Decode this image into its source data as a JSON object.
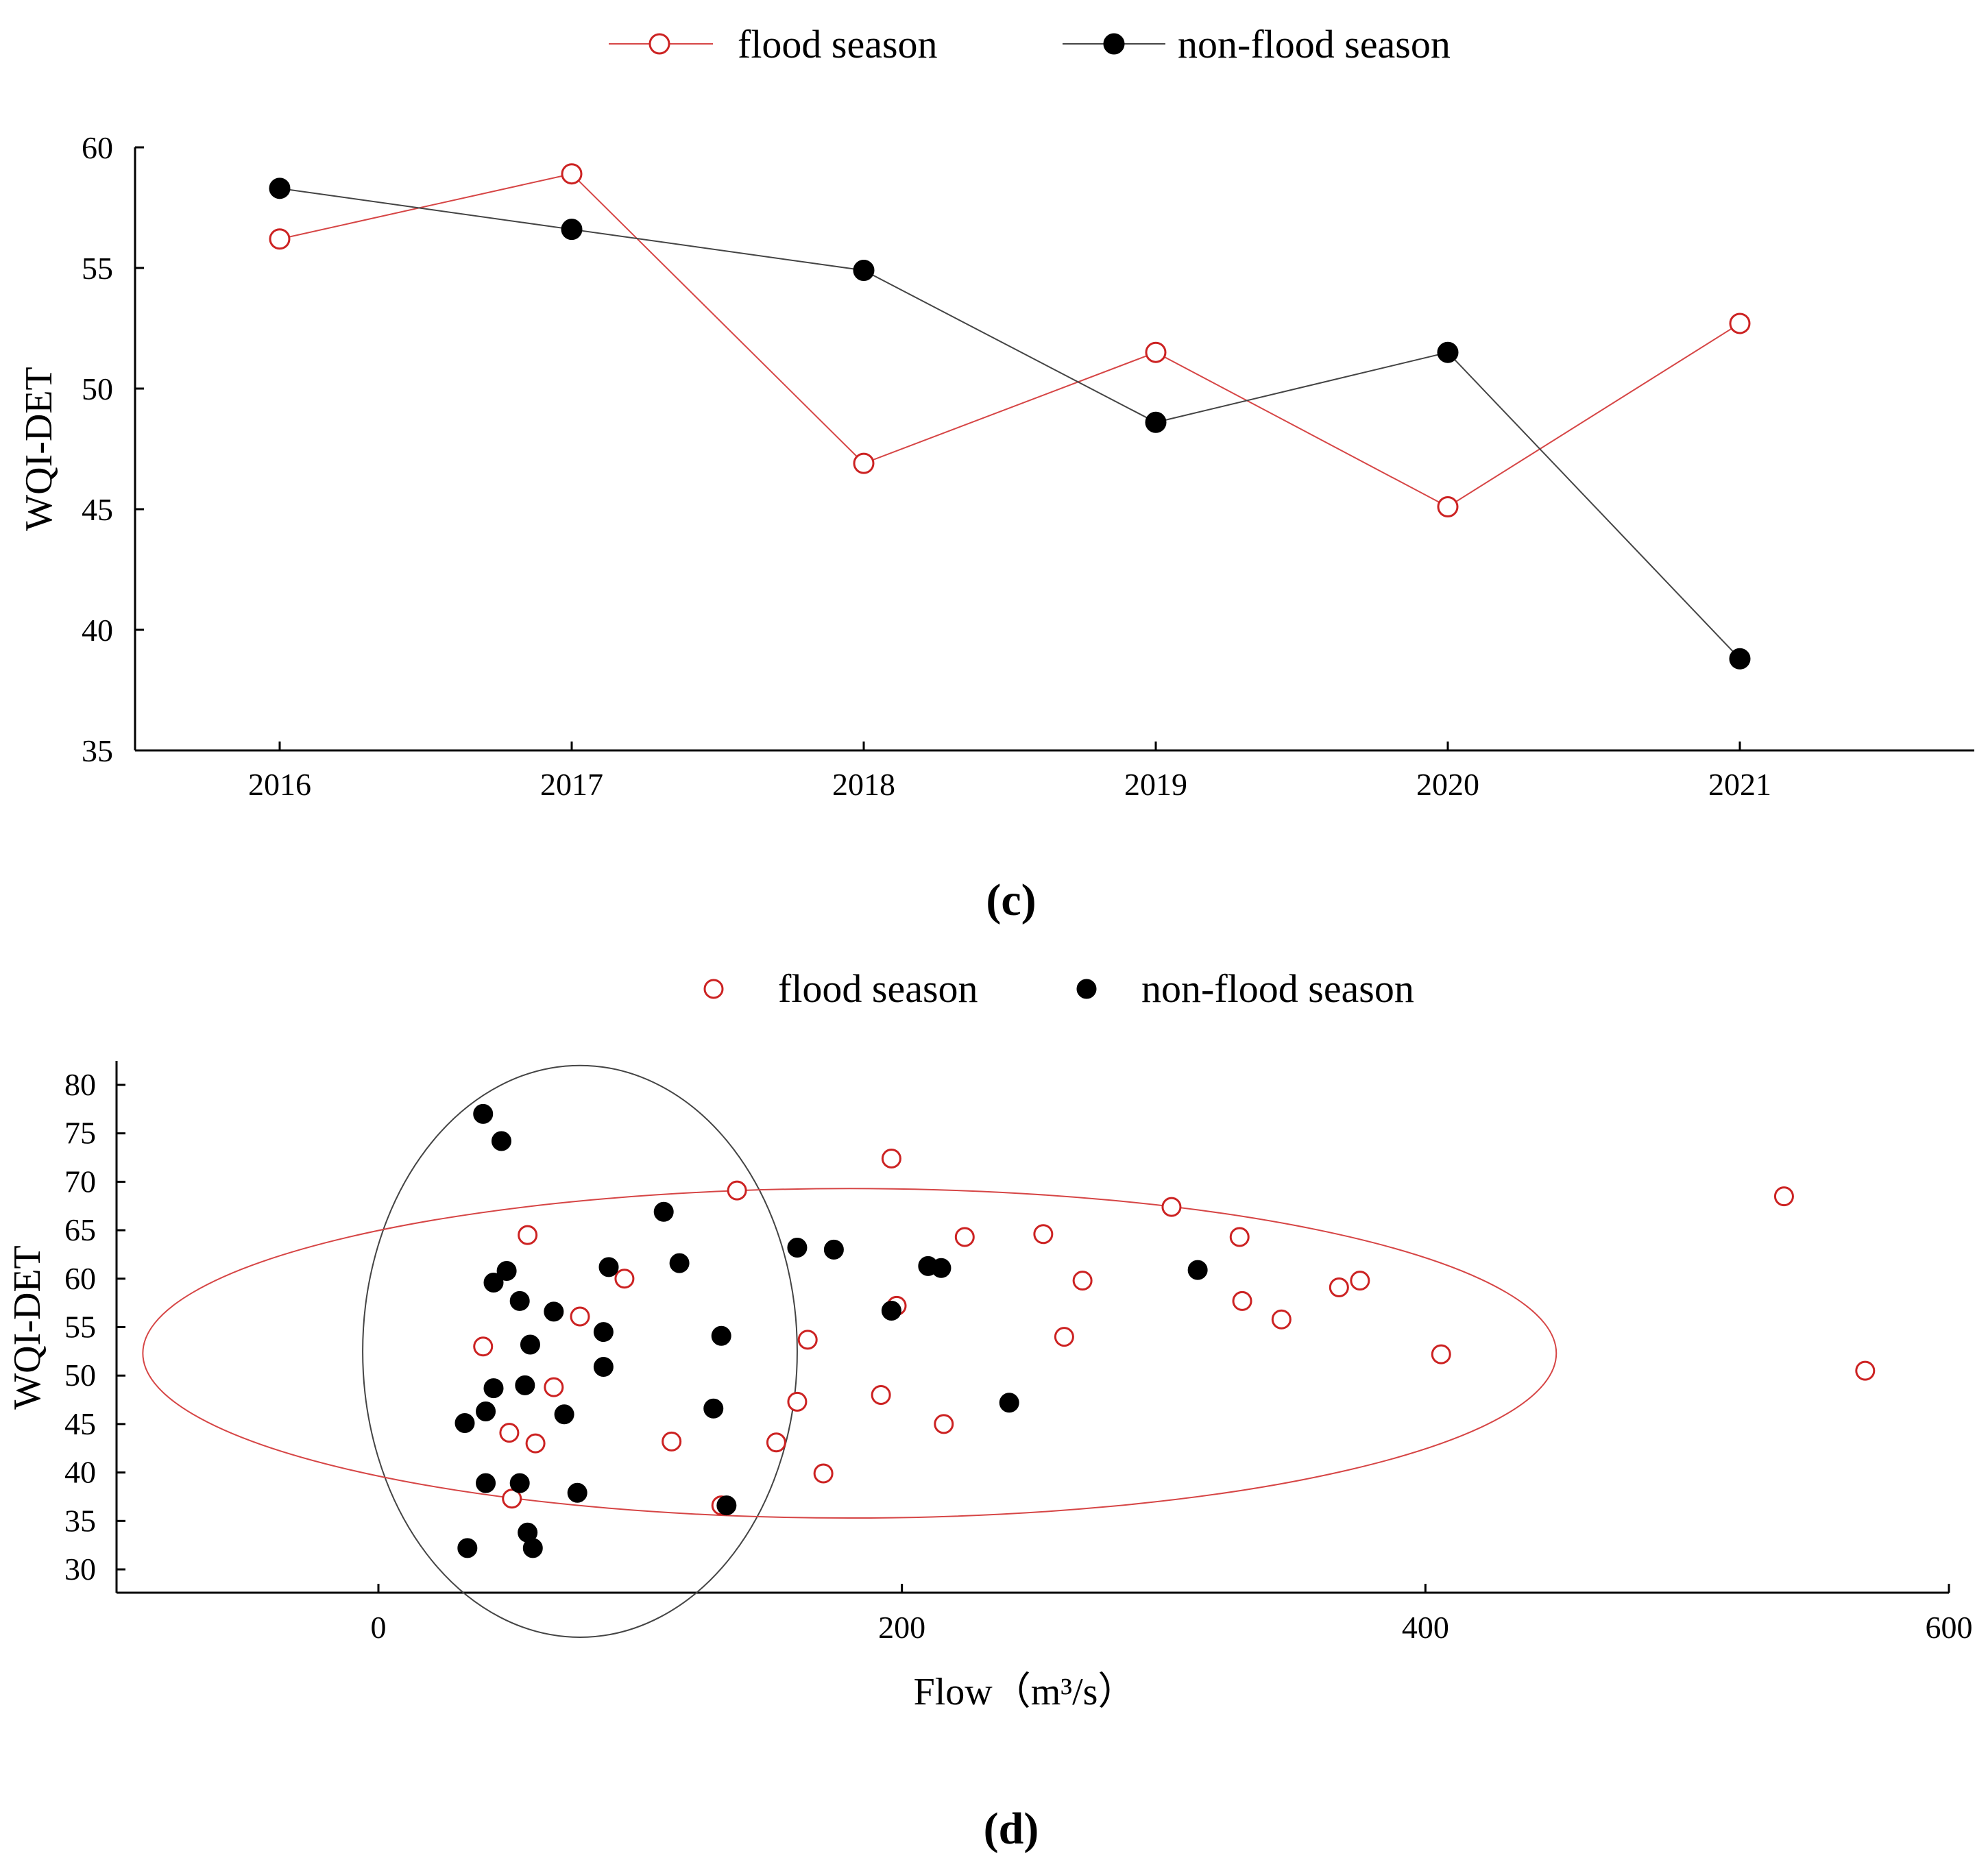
{
  "colors": {
    "flood": "#cc2222",
    "nonflood": "#000000",
    "flood_line": "#d64545",
    "nonflood_line": "#444444",
    "axis": "#000000"
  },
  "chart_data": [
    {
      "type": "line",
      "panel_label": "(c)",
      "title": "",
      "xlabel": "",
      "ylabel": "WQI-DET",
      "categories": [
        "2016",
        "2017",
        "2018",
        "2019",
        "2020",
        "2021"
      ],
      "ylim": [
        35,
        60
      ],
      "yticks": [
        35,
        40,
        45,
        50,
        55,
        60
      ],
      "legend": {
        "placement": "top-center"
      },
      "series": [
        {
          "name": "flood season",
          "marker": "open-circle",
          "values": [
            56.2,
            58.9,
            46.9,
            51.5,
            45.1,
            52.7
          ]
        },
        {
          "name": "non-flood season",
          "marker": "filled-circle",
          "values": [
            58.3,
            56.6,
            54.9,
            48.6,
            51.5,
            38.8
          ]
        }
      ]
    },
    {
      "type": "scatter",
      "panel_label": "(d)",
      "title": "",
      "xlabel": "Flow（m³/s）",
      "ylabel": "WQI-DET",
      "xlim": [
        -100,
        600
      ],
      "ylim": [
        27.5,
        82.5
      ],
      "xticks": [
        0,
        200,
        400,
        600
      ],
      "yticks": [
        30,
        35,
        40,
        45,
        50,
        55,
        60,
        65,
        70,
        75,
        80
      ],
      "legend": {
        "placement": "top-center"
      },
      "series": [
        {
          "name": "flood season",
          "marker": "open-circle",
          "points": [
            [
              40,
              53
            ],
            [
              57,
              64.5
            ],
            [
              50,
              44.1
            ],
            [
              60,
              43
            ],
            [
              51,
              37.3
            ],
            [
              67,
              48.8
            ],
            [
              77,
              56.1
            ],
            [
              94,
              60
            ],
            [
              112,
              43.2
            ],
            [
              137,
              69.1
            ],
            [
              131,
              36.6
            ],
            [
              152,
              43.1
            ],
            [
              160,
              47.3
            ],
            [
              164,
              53.7
            ],
            [
              170,
              39.9
            ],
            [
              192,
              48
            ],
            [
              196,
              72.4
            ],
            [
              198,
              57.2
            ],
            [
              216,
              45
            ],
            [
              224,
              64.3
            ],
            [
              254,
              64.6
            ],
            [
              262,
              54
            ],
            [
              269,
              59.8
            ],
            [
              303,
              67.4
            ],
            [
              329,
              64.3
            ],
            [
              330,
              57.7
            ],
            [
              345,
              55.8
            ],
            [
              367,
              59.1
            ],
            [
              375,
              59.8
            ],
            [
              406,
              52.2
            ],
            [
              537,
              68.5
            ],
            [
              568,
              50.5
            ]
          ]
        },
        {
          "name": "non-flood season",
          "marker": "filled-circle",
          "points": [
            [
              40,
              77
            ],
            [
              47,
              74.2
            ],
            [
              44,
              59.6
            ],
            [
              49,
              60.8
            ],
            [
              54,
              57.7
            ],
            [
              58,
              53.2
            ],
            [
              44,
              48.7
            ],
            [
              56,
              49
            ],
            [
              41,
              46.3
            ],
            [
              33,
              45.1
            ],
            [
              41,
              38.9
            ],
            [
              54,
              38.9
            ],
            [
              57,
              33.8
            ],
            [
              59,
              32.2
            ],
            [
              34,
              32.2
            ],
            [
              67,
              56.6
            ],
            [
              71,
              46
            ],
            [
              76,
              37.9
            ],
            [
              86,
              54.5
            ],
            [
              86,
              50.9
            ],
            [
              88,
              61.2
            ],
            [
              109,
              66.9
            ],
            [
              115,
              61.6
            ],
            [
              128,
              46.6
            ],
            [
              131,
              54.1
            ],
            [
              133,
              36.6
            ],
            [
              160,
              63.2
            ],
            [
              174,
              63
            ],
            [
              196,
              56.7
            ],
            [
              210,
              61.3
            ],
            [
              215,
              61.1
            ],
            [
              241,
              47.2
            ],
            [
              313,
              60.9
            ]
          ]
        }
      ],
      "annotations": [
        {
          "kind": "ellipse",
          "group": "non-flood season",
          "center": [
            77,
            52.5
          ],
          "semi_axes": [
            83,
            29.5
          ],
          "rotation_deg": 0
        },
        {
          "kind": "ellipse",
          "group": "flood season",
          "center": [
            180,
            52.3
          ],
          "semi_axes": [
            270,
            17
          ],
          "rotation_deg": 0
        }
      ]
    }
  ]
}
